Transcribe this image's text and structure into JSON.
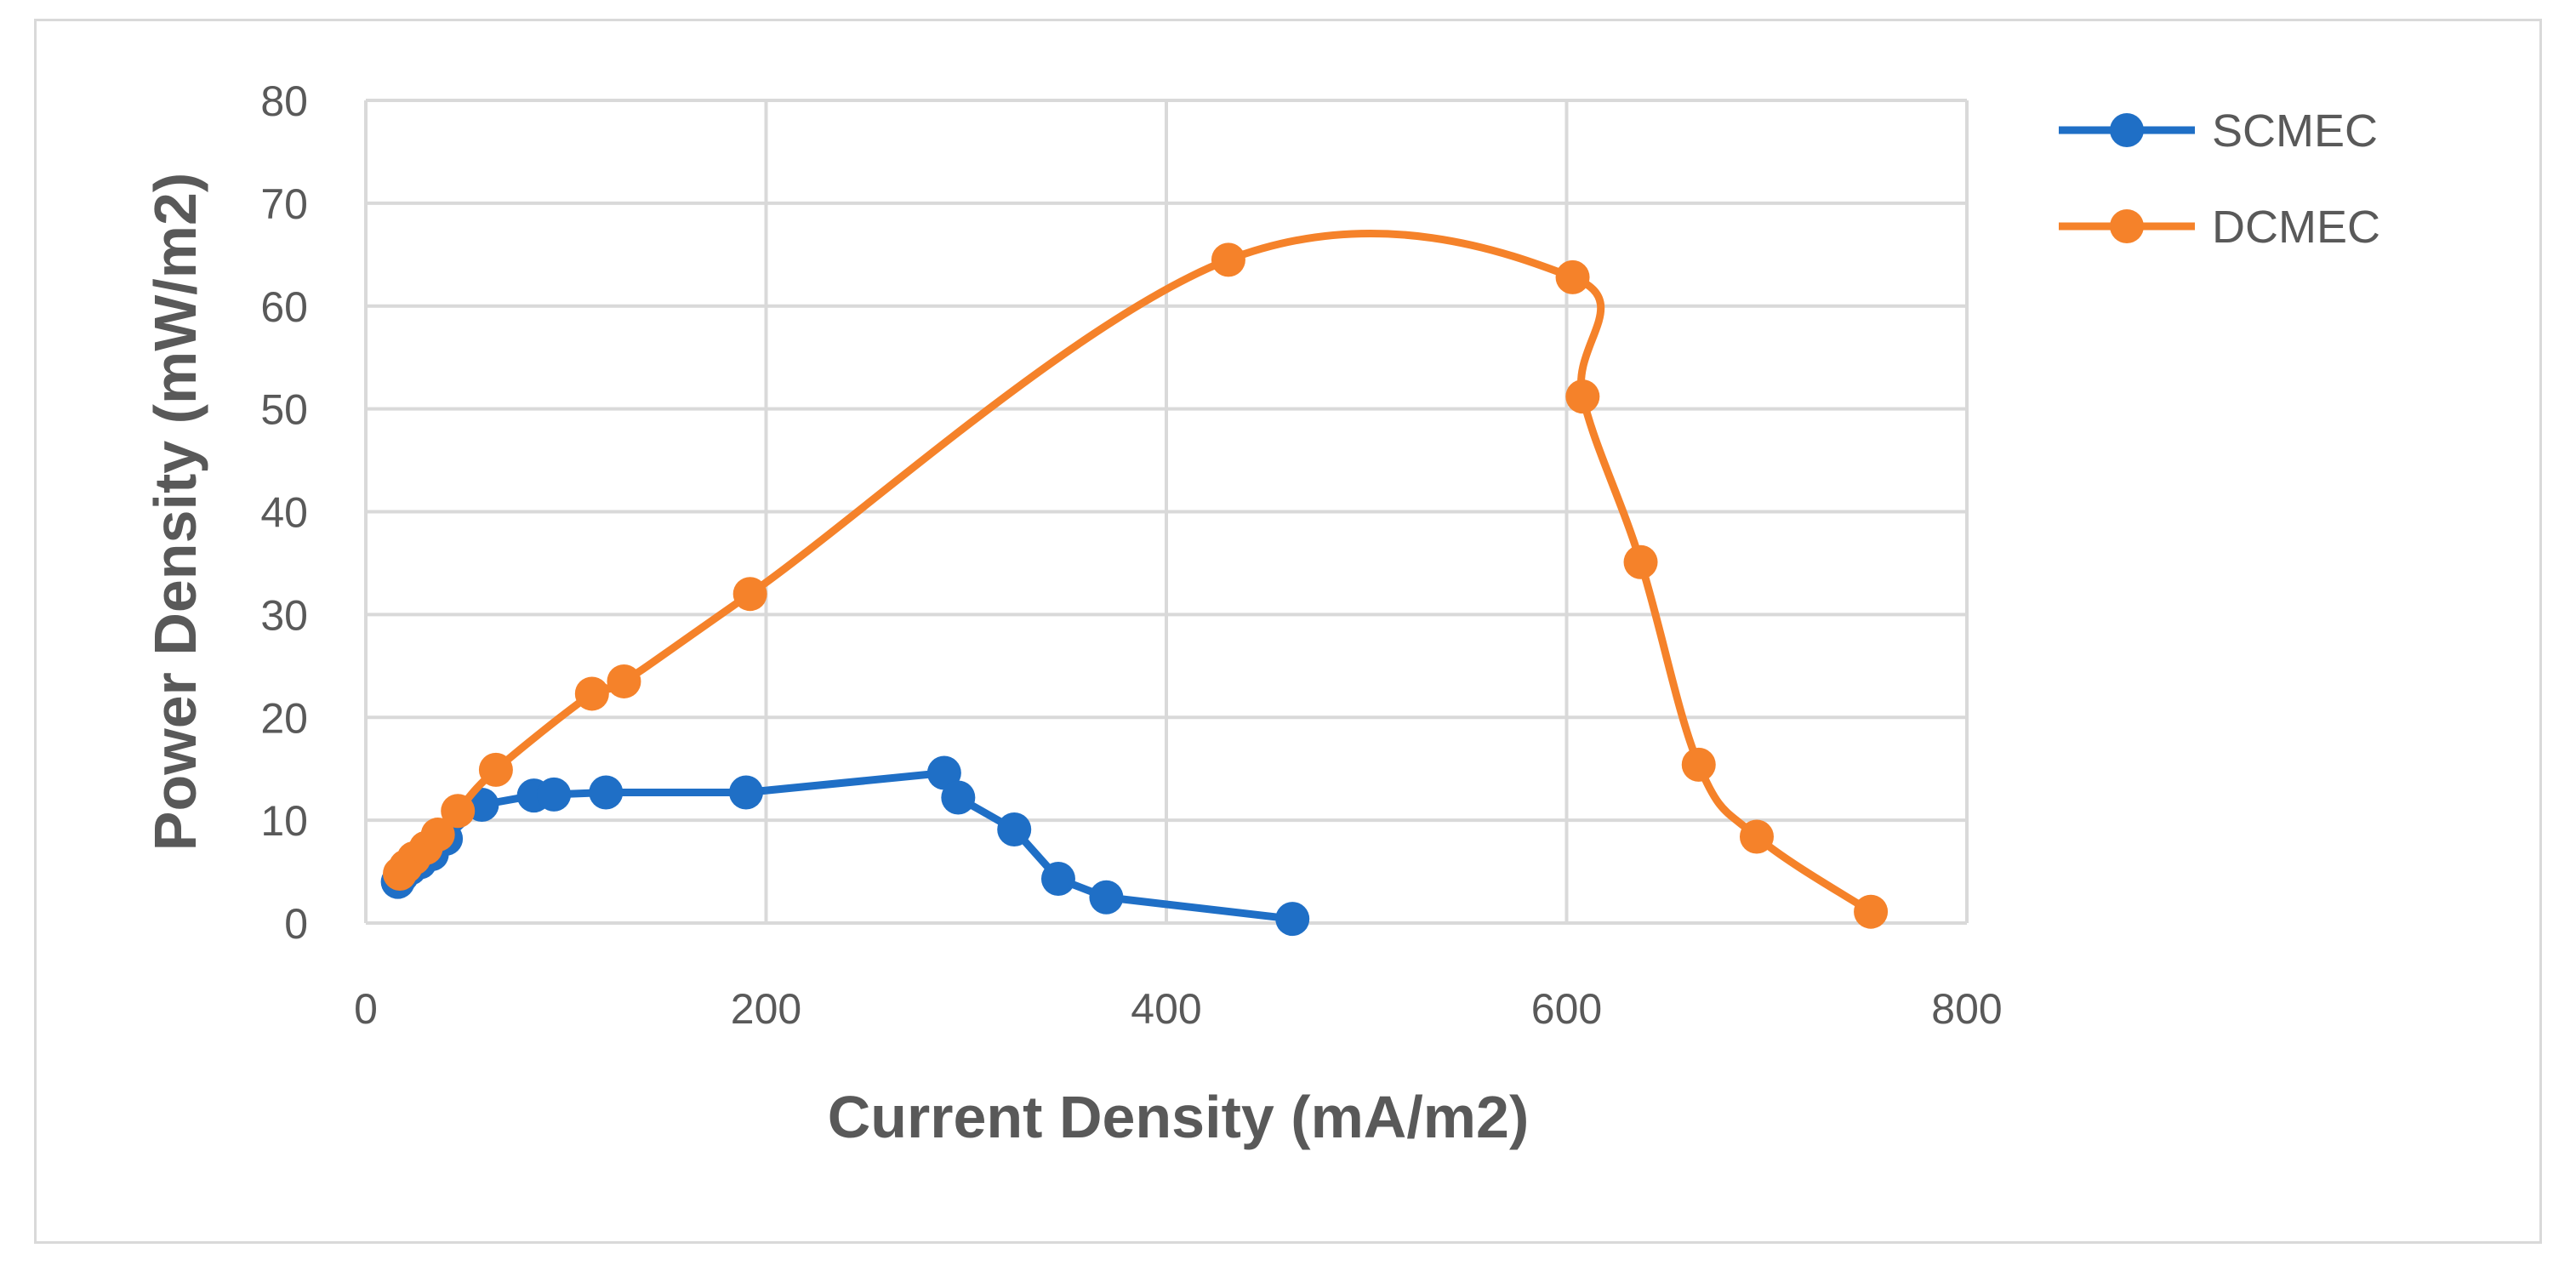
{
  "chart_data": {
    "type": "scatter",
    "title": "",
    "xlabel": "Current Density (mA/m2)",
    "ylabel": "Power Density (mW/m2)",
    "xlim": [
      0,
      800
    ],
    "ylim": [
      0,
      80
    ],
    "xticks": [
      0,
      200,
      400,
      600,
      800
    ],
    "yticks": [
      0,
      10,
      20,
      30,
      40,
      50,
      60,
      70,
      80
    ],
    "grid": true,
    "legend_position": "top-right",
    "series": [
      {
        "name": "SCMEC",
        "color": "#1f6fc6",
        "smooth": false,
        "points": [
          [
            16,
            4
          ],
          [
            18,
            4.6
          ],
          [
            22,
            5.3
          ],
          [
            27,
            5.9
          ],
          [
            33,
            6.7
          ],
          [
            40,
            8.2
          ],
          [
            58,
            11.5
          ],
          [
            84,
            12.4
          ],
          [
            94,
            12.5
          ],
          [
            120,
            12.7
          ],
          [
            190,
            12.7
          ],
          [
            289,
            14.6
          ],
          [
            296,
            12.2
          ],
          [
            324,
            9.1
          ],
          [
            346,
            4.3
          ],
          [
            370,
            2.5
          ],
          [
            463,
            0.4
          ]
        ]
      },
      {
        "name": "DCMEC",
        "color": "#f5822a",
        "smooth": true,
        "points": [
          [
            17,
            4.8
          ],
          [
            20,
            5.5
          ],
          [
            24,
            6.3
          ],
          [
            30,
            7.3
          ],
          [
            36,
            8.6
          ],
          [
            46,
            10.9
          ],
          [
            65,
            14.9
          ],
          [
            113,
            22.3
          ],
          [
            129,
            23.5
          ],
          [
            192,
            32
          ],
          [
            431,
            64.5
          ],
          [
            603,
            62.8
          ],
          [
            608,
            51.2
          ],
          [
            637,
            35.1
          ],
          [
            666,
            15.4
          ],
          [
            695,
            8.4
          ],
          [
            752,
            1.1
          ]
        ]
      }
    ]
  }
}
